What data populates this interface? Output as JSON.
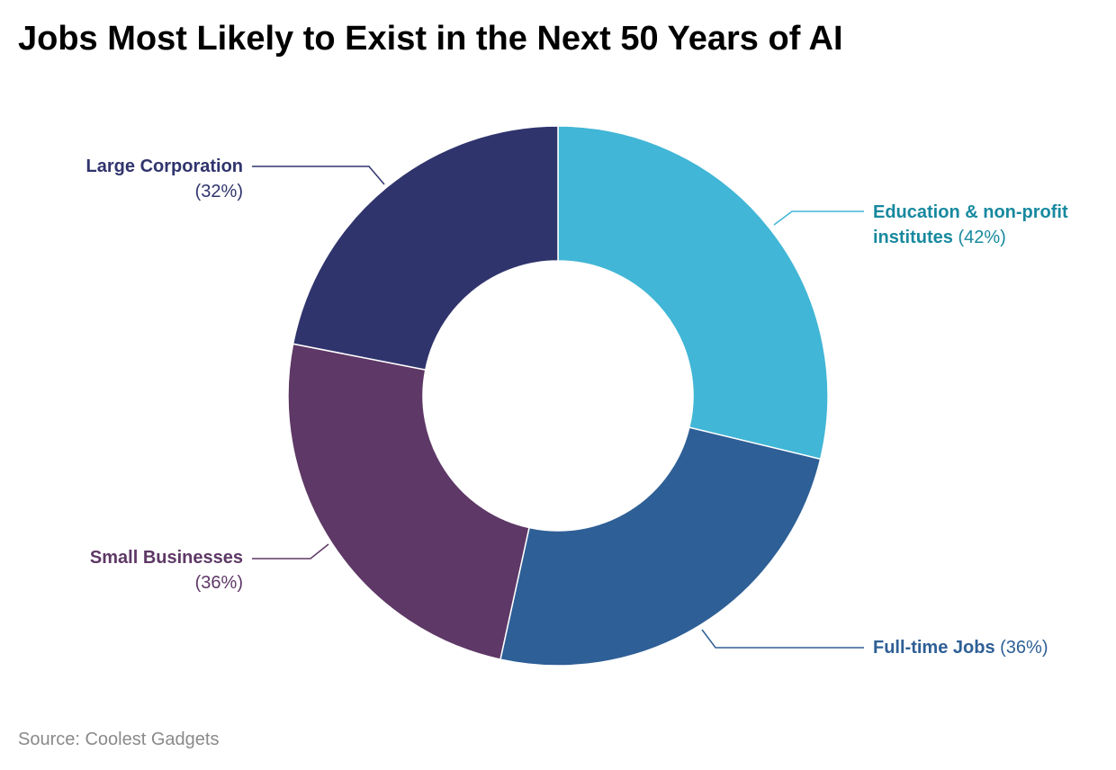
{
  "chart_data": {
    "type": "pie",
    "title": "Jobs Most Likely to Exist in the Next 50 Years of AI",
    "categories": [
      "Education & non-profit institutes",
      "Full-time Jobs",
      "Small Businesses",
      "Large Corporation"
    ],
    "values": [
      42,
      36,
      36,
      32
    ],
    "value_labels": [
      "(42%)",
      "(36%)",
      "(36%)",
      "(32%)"
    ],
    "colors": [
      "#41b6d6",
      "#2e5f96",
      "#5e3866",
      "#30346d"
    ],
    "source": "Source: Coolest Gadgets"
  }
}
